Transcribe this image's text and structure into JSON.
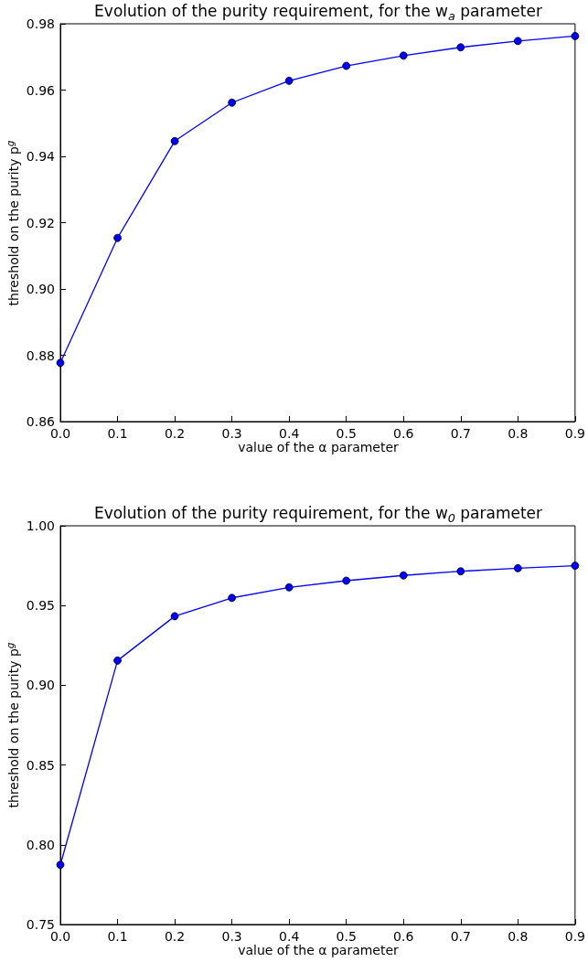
{
  "chart_data": [
    {
      "type": "line",
      "title": "Evolution of the purity requirement, for the w$_{a}$ parameter",
      "xlabel": "value of the α parameter",
      "ylabel": "threshold on the purity p$^{g}$",
      "x": [
        0,
        0.1,
        0.2,
        0.3,
        0.4,
        0.5,
        0.6,
        0.7,
        0.8,
        0.9
      ],
      "series": [
        {
          "color": "#0000ff",
          "values": [
            0.8777,
            0.9154,
            0.9446,
            0.9562,
            0.9628,
            0.9673,
            0.9704,
            0.9729,
            0.9748,
            0.9763
          ]
        }
      ],
      "xlim": [
        0,
        0.9
      ],
      "xticks": [
        {
          "value": 0,
          "label": "0.0"
        },
        0.1,
        0.2,
        0.3,
        0.4,
        0.5,
        0.6,
        0.7,
        0.8,
        0.9
      ],
      "ylim": [
        0.86,
        0.98
      ],
      "yticks": [
        0.86,
        0.88,
        {
          "value": 0.9,
          "label": "0.90"
        },
        0.92,
        0.94,
        0.96,
        0.98
      ],
      "grid": false,
      "marker": "circle",
      "line_style": "solid"
    },
    {
      "type": "line",
      "title": "Evolution of the purity requirement, for the w$_{0}$ parameter",
      "xlabel": "value of the α parameter",
      "ylabel": "threshold on the purity p$^{g}$",
      "x": [
        0,
        0.1,
        0.2,
        0.3,
        0.4,
        0.5,
        0.6,
        0.7,
        0.8,
        0.9
      ],
      "series": [
        {
          "color": "#0000ff",
          "values": [
            0.7874,
            0.9155,
            0.9433,
            0.9548,
            0.9614,
            0.9656,
            0.9689,
            0.9715,
            0.9734,
            0.975
          ]
        }
      ],
      "xlim": [
        0,
        0.9
      ],
      "xticks": [
        {
          "value": 0,
          "label": "0.0"
        },
        0.1,
        0.2,
        0.3,
        0.4,
        0.5,
        0.6,
        0.7,
        0.8,
        0.9
      ],
      "ylim": [
        0.75,
        1.0
      ],
      "yticks": [
        0.75,
        {
          "value": 0.8,
          "label": "0.80"
        },
        0.85,
        {
          "value": 0.9,
          "label": "0.90"
        },
        0.95,
        {
          "value": 1.0,
          "label": "1.00"
        }
      ],
      "grid": false,
      "marker": "circle",
      "line_style": "solid"
    }
  ]
}
